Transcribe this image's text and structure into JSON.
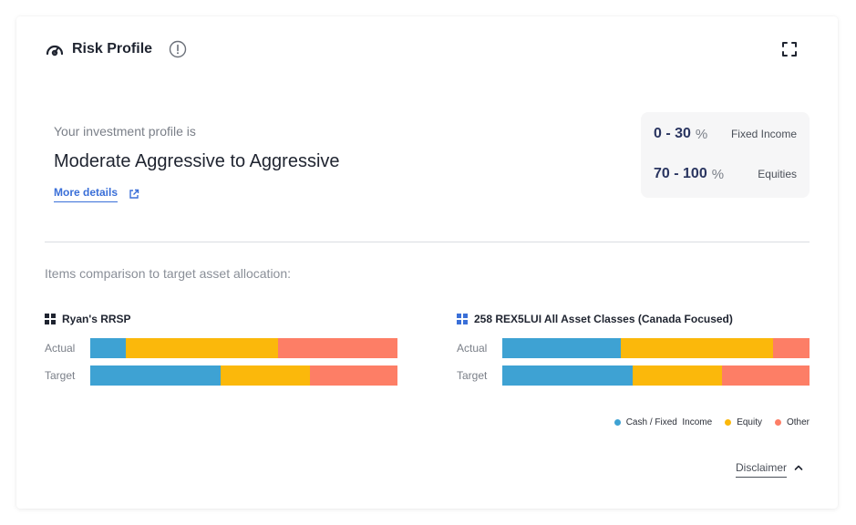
{
  "header": {
    "title": "Risk Profile"
  },
  "profile": {
    "intro": "Your investment profile is",
    "name": "Moderate Aggressive to Aggressive",
    "more_details": "More details"
  },
  "ranges": [
    {
      "value": "0 - 30",
      "unit": "%",
      "label": "Fixed Income"
    },
    {
      "value": "70 - 100",
      "unit": "%",
      "label": "Equities"
    }
  ],
  "comparison": {
    "label": "Items comparison to target asset allocation:",
    "accounts": [
      {
        "title": "Ryan's RRSP",
        "icon_color": "#1f2430",
        "actual_label": "Actual",
        "target_label": "Target",
        "actual": [
          11.5,
          49.5,
          39.0
        ],
        "target": [
          42.5,
          29.0,
          28.5
        ]
      },
      {
        "title": "258 REX5LUI All Asset Classes (Canada Focused)",
        "icon_color": "#3a6fd8",
        "actual_label": "Actual",
        "target_label": "Target",
        "actual": [
          38.5,
          49.5,
          12.0
        ],
        "target": [
          42.5,
          29.0,
          28.5
        ]
      }
    ]
  },
  "legend": [
    {
      "label": "Cash / Fixed  Income",
      "color": "#3ea2d3"
    },
    {
      "label": "Equity",
      "color": "#fbb80b"
    },
    {
      "label": "Other",
      "color": "#fd7e66"
    }
  ],
  "disclaimer": "Disclaimer"
}
